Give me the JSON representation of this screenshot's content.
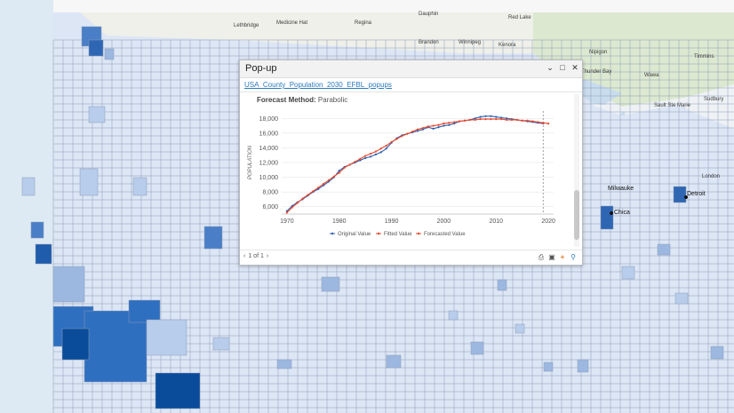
{
  "popup": {
    "title": "Pop-up",
    "layer_name": "USA_County_Population_2030_EFBL_popups",
    "forecast_label": "Forecast Method:",
    "forecast_value": "Parabolic",
    "pager_text": "1 of 1",
    "window_buttons": [
      "chevron-down-icon",
      "restore-icon",
      "close-icon"
    ],
    "footer_tools": [
      "print-icon",
      "save-icon",
      "add-icon",
      "zoom-icon"
    ]
  },
  "map_labels": [
    "Lethbridge",
    "Medicine Hat",
    "Regina",
    "Dauphin",
    "Red Lake",
    "Brandon",
    "Winnipeg",
    "Kenora",
    "Nipigon",
    "Timmins",
    "Thunder Bay",
    "Wawa",
    "Sault Ste Marie",
    "Sudbury",
    "Milwauke",
    "Chica",
    "Detroit",
    "London"
  ],
  "colors": {
    "original": "#2e5fb0",
    "fitted": "#e8482c",
    "forecasted": "#e8482c",
    "county_light": "#dde6f5",
    "county_dark": "#0a4c9a"
  },
  "chart_data": {
    "type": "line",
    "title": "",
    "xlabel": "",
    "ylabel": "POPULATION",
    "xlim": [
      1969,
      2021
    ],
    "ylim": [
      5000,
      19000
    ],
    "x_ticks": [
      1970,
      1980,
      1990,
      2000,
      2010,
      2020
    ],
    "y_ticks": [
      6000,
      8000,
      10000,
      12000,
      14000,
      16000,
      18000
    ],
    "y_tick_labels": [
      "6,000",
      "8,000",
      "10,000",
      "12,000",
      "14,000",
      "16,000",
      "18,000"
    ],
    "forecast_start": 2019,
    "legend_position": "bottom",
    "series": [
      {
        "name": "Original Value",
        "color": "#2e5fb0",
        "x": [
          1970,
          1971,
          1972,
          1973,
          1974,
          1975,
          1976,
          1977,
          1978,
          1979,
          1980,
          1981,
          1982,
          1983,
          1984,
          1985,
          1986,
          1987,
          1988,
          1989,
          1990,
          1991,
          1992,
          1993,
          1994,
          1995,
          1996,
          1997,
          1998,
          1999,
          2000,
          2001,
          2002,
          2003,
          2004,
          2005,
          2006,
          2007,
          2008,
          2009,
          2010,
          2011,
          2012,
          2013,
          2014,
          2015,
          2016,
          2017,
          2018,
          2019
        ],
        "y": [
          5400,
          6100,
          6600,
          7000,
          7500,
          8000,
          8400,
          8900,
          9400,
          10000,
          10900,
          11400,
          11700,
          12000,
          12300,
          12600,
          12800,
          13100,
          13400,
          13900,
          14700,
          15300,
          15700,
          15900,
          16100,
          16300,
          16500,
          16800,
          16600,
          16800,
          17000,
          17100,
          17300,
          17600,
          17700,
          17800,
          18000,
          18200,
          18300,
          18300,
          18200,
          18100,
          18000,
          17900,
          17800,
          17700,
          17600,
          17500,
          17400,
          17300
        ]
      },
      {
        "name": "Fitted Value",
        "color": "#e8482c",
        "x": [
          1970,
          1971,
          1972,
          1973,
          1974,
          1975,
          1976,
          1977,
          1978,
          1979,
          1980,
          1981,
          1982,
          1983,
          1984,
          1985,
          1986,
          1987,
          1988,
          1989,
          1990,
          1991,
          1992,
          1993,
          1994,
          1995,
          1996,
          1997,
          1998,
          1999,
          2000,
          2001,
          2002,
          2003,
          2004,
          2005,
          2006,
          2007,
          2008,
          2009,
          2010,
          2011,
          2012,
          2013,
          2014,
          2015,
          2016,
          2017,
          2018,
          2019
        ],
        "y": [
          5200,
          5900,
          6500,
          7100,
          7600,
          8100,
          8600,
          9100,
          9600,
          10100,
          10600,
          11300,
          11700,
          12100,
          12500,
          12900,
          13200,
          13500,
          13900,
          14300,
          14800,
          15200,
          15600,
          15900,
          16200,
          16500,
          16700,
          16900,
          17000,
          17100,
          17300,
          17400,
          17500,
          17600,
          17700,
          17800,
          17800,
          17900,
          17900,
          17900,
          17900,
          17900,
          17800,
          17800,
          17800,
          17700,
          17700,
          17600,
          17500,
          17400
        ]
      },
      {
        "name": "Forecasted Value",
        "color": "#e8482c",
        "x": [
          2019,
          2020
        ],
        "y": [
          17400,
          17300
        ]
      }
    ]
  }
}
